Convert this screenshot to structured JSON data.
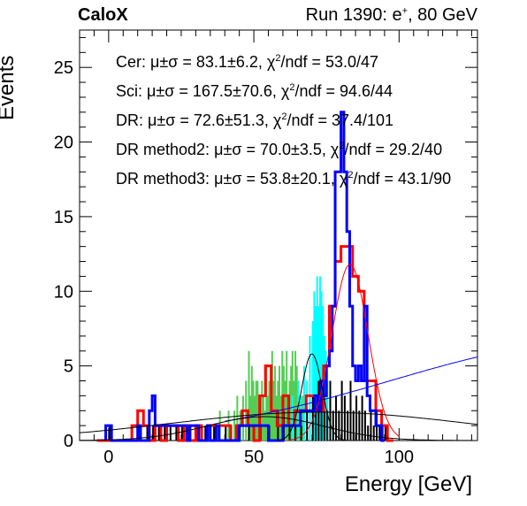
{
  "header": {
    "left": "CaloX",
    "right_prefix": "Run 1390: e",
    "right_sup": "+",
    "right_suffix": ", 80 GeV"
  },
  "chart_data": {
    "type": "bar",
    "xlabel": "Energy [GeV]",
    "ylabel": "Events",
    "xlim": [
      -10,
      127
    ],
    "ylim": [
      0,
      27.5
    ],
    "xticks": [
      0,
      50,
      100
    ],
    "yticks": [
      0,
      5,
      10,
      15,
      20,
      25
    ],
    "grid": false,
    "legend_placement": "top-left",
    "legend": [
      {
        "label": "Cer:",
        "stat": "μ±σ = 83.1±6.2,",
        "chi_prefix": "χ",
        "chi_sup": "2",
        "chi_suffix": "/ndf = 53.0/47"
      },
      {
        "label": "Sci:",
        "stat": "μ±σ = 167.5±70.6,",
        "chi_prefix": "χ",
        "chi_sup": "2",
        "chi_suffix": "/ndf = 94.6/44"
      },
      {
        "label": "DR:",
        "stat": "μ±σ = 72.6±51.3,",
        "chi_prefix": "χ",
        "chi_sup": "2",
        "chi_suffix": "/ndf = 37.4/101"
      },
      {
        "label": "DR method2:",
        "stat": "μ±σ = 70.0±3.5,",
        "chi_prefix": "χ",
        "chi_sup": "2",
        "chi_suffix": "/ndf = 29.2/40"
      },
      {
        "label": "DR method3:",
        "stat": "μ±σ = 53.8±20.1,",
        "chi_prefix": "χ",
        "chi_sup": "2",
        "chi_suffix": "/ndf = 43.1/90"
      }
    ],
    "series": [
      {
        "color": "#ff0000",
        "style": "step",
        "bin_width": 2,
        "x": [
          -4,
          -2,
          0,
          2,
          4,
          6,
          8,
          10,
          12,
          14,
          16,
          18,
          20,
          22,
          24,
          26,
          28,
          30,
          32,
          34,
          36,
          38,
          40,
          42,
          44,
          46,
          48,
          50,
          52,
          54,
          56,
          58,
          60,
          62,
          64,
          66,
          68,
          70,
          72,
          74,
          76,
          78,
          80,
          82,
          84,
          86,
          88,
          90,
          92,
          94,
          96
        ],
        "values": [
          0,
          0,
          0,
          0,
          0,
          0,
          1,
          2,
          1,
          0,
          1,
          0,
          1,
          1,
          0,
          1,
          0,
          1,
          0,
          1,
          1,
          1,
          1,
          0,
          1,
          2,
          1,
          0,
          3,
          5,
          2,
          1,
          3,
          1,
          2,
          2,
          3,
          3,
          2,
          5,
          9,
          12,
          13,
          13,
          11,
          10,
          4,
          4,
          2,
          1,
          0
        ]
      },
      {
        "color": "#0000ff",
        "style": "step",
        "bin_width": 1,
        "x": [
          -1,
          0,
          1,
          10,
          11,
          14,
          15,
          16,
          26,
          27,
          28,
          31,
          34,
          35,
          37,
          38,
          45,
          54,
          55,
          60,
          62,
          64,
          66,
          68,
          70,
          71,
          72,
          73,
          74,
          75,
          76,
          77,
          78,
          79,
          80,
          81,
          82,
          83,
          84,
          85,
          86,
          87,
          88,
          89,
          90,
          91,
          92,
          93,
          94
        ],
        "values": [
          1,
          1,
          0,
          1,
          0,
          2,
          3,
          1,
          1,
          0,
          1,
          0,
          1,
          0,
          1,
          0,
          1,
          1,
          0,
          1,
          1,
          1,
          2,
          2,
          2,
          3,
          2,
          4,
          3,
          5,
          6,
          9,
          18,
          18,
          22,
          18,
          14,
          9,
          5,
          4,
          5,
          4,
          9,
          3,
          2,
          2,
          1,
          1,
          0
        ]
      },
      {
        "color": "#00ffff",
        "style": "spikes",
        "bin_width": 0.5,
        "x": [
          62,
          63,
          64,
          65,
          66,
          67,
          68,
          69,
          70,
          70.5,
          71,
          71.5,
          72,
          72.5,
          73,
          73.5,
          74,
          74.5,
          75,
          76,
          77
        ],
        "values": [
          1,
          3,
          2,
          4,
          3,
          5,
          4,
          7,
          8,
          10,
          9,
          11,
          9,
          11,
          10,
          9,
          7,
          6,
          4,
          2,
          1
        ]
      },
      {
        "color": "#55cc55",
        "style": "spikes",
        "bin_width": 0.5,
        "x": [
          34,
          36,
          38,
          40,
          41,
          42,
          43,
          44,
          45,
          46,
          47,
          48,
          48.5,
          49,
          49.5,
          50,
          50.5,
          51,
          51.5,
          52,
          52.5,
          53,
          53.5,
          54,
          54.5,
          55,
          55.5,
          56,
          56.5,
          57,
          57.5,
          58,
          58.5,
          59,
          59.5,
          60,
          60.5,
          61,
          61.5,
          62,
          62.5,
          63,
          63.5,
          64,
          64.5,
          65,
          65.5,
          66,
          66.5,
          67,
          68,
          69,
          70
        ],
        "values": [
          1,
          1,
          2,
          1,
          2,
          1,
          2,
          3,
          2,
          3,
          4,
          6,
          3,
          5,
          4,
          3,
          4,
          4,
          2,
          3,
          4,
          3,
          2,
          5,
          3,
          4,
          5,
          6,
          4,
          5,
          3,
          4,
          5,
          3,
          6,
          5,
          4,
          6,
          3,
          4,
          5,
          6,
          4,
          6,
          5,
          4,
          3,
          2,
          3,
          1,
          1,
          1,
          1
        ]
      },
      {
        "color": "#000000",
        "style": "spikes",
        "bin_width": 0.5,
        "x": [
          0,
          10,
          13,
          15,
          17,
          19,
          21,
          23,
          25,
          27,
          30,
          33,
          36,
          40,
          44,
          48,
          52,
          55,
          58,
          60,
          62,
          64,
          66,
          68,
          70,
          71,
          72,
          73,
          74,
          75,
          76,
          77,
          78,
          79,
          80,
          81,
          82,
          83,
          84,
          85,
          86,
          87,
          88,
          89,
          90,
          91,
          92,
          93,
          94,
          95
        ],
        "values": [
          1,
          1,
          1,
          1,
          1,
          1,
          1,
          1,
          1,
          1,
          1,
          1,
          1,
          1,
          1,
          1,
          1,
          1,
          2,
          2,
          1,
          1,
          1,
          2,
          3,
          2,
          4,
          3,
          2,
          2,
          4,
          2,
          3,
          2,
          4,
          3,
          2,
          4,
          2,
          3,
          2,
          3,
          2,
          1,
          2,
          1,
          2,
          1,
          1,
          1
        ]
      }
    ],
    "fits": [
      {
        "color": "#ff0000",
        "type": "gaus",
        "mean": 83.1,
        "sigma": 6.2,
        "amp": 11.8,
        "x_range": [
          62,
          100
        ]
      },
      {
        "color": "#0000ff",
        "type": "gaus",
        "mean": 167.5,
        "sigma": 70.6,
        "amp": 6.6,
        "x_range": [
          40,
          127
        ]
      },
      {
        "color": "#000000",
        "type": "gaus",
        "mean": 72.6,
        "sigma": 51.3,
        "amp": 1.9,
        "x_range": [
          -10,
          127
        ]
      },
      {
        "color": "#000000",
        "type": "gaus",
        "mean": 70.0,
        "sigma": 3.5,
        "amp": 5.8,
        "x_range": [
          58,
          82
        ]
      },
      {
        "color": "#000000",
        "type": "gaus",
        "mean": 53.8,
        "sigma": 20.1,
        "amp": 1.6,
        "x_range": [
          -10,
          127
        ]
      }
    ]
  }
}
